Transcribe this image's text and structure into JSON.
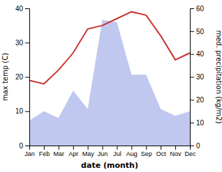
{
  "chart_data": {
    "type": "line",
    "xlabel": "date (month)",
    "ylabel": "max temp (C)",
    "y2label": "med. precipitation (kg/m2)",
    "categories": [
      "Jan",
      "Feb",
      "Mar",
      "Apr",
      "May",
      "Jun",
      "Jul",
      "Aug",
      "Sep",
      "Oct",
      "Nov",
      "Dec"
    ],
    "series": [
      {
        "type": "area",
        "axis": "y2",
        "color": "#c0c8f0",
        "values": [
          11,
          15,
          12,
          24,
          16,
          55,
          54,
          31,
          31,
          16,
          13,
          15
        ]
      },
      {
        "type": "line",
        "color": "#cc3333",
        "values": [
          19,
          18,
          22,
          27,
          34,
          35,
          37,
          39,
          38,
          32,
          25,
          27
        ]
      }
    ],
    "ylim": [
      0,
      40
    ],
    "yticks": [
      0,
      10,
      20,
      30,
      40
    ],
    "y2lim": [
      0,
      60
    ],
    "y2ticks": [
      0,
      10,
      20,
      30,
      40,
      50,
      60
    ],
    "grid": false
  }
}
